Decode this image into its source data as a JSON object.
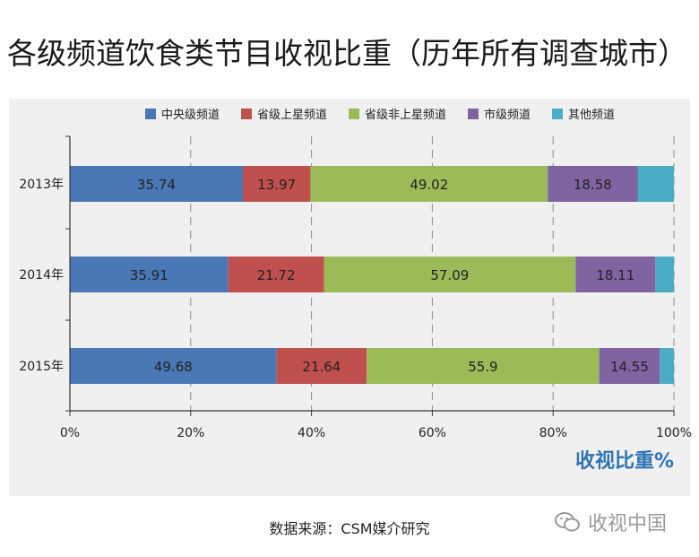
{
  "chart_data": {
    "type": "bar",
    "orientation": "horizontal",
    "stacked": true,
    "normalized": true,
    "title": "各级频道饮食类节目收视比重（历年所有调查城市）",
    "categories": [
      "2013年",
      "2014年",
      "2015年"
    ],
    "series": [
      {
        "name": "中央级频道",
        "color": "#4a78b6",
        "values": [
          35.74,
          35.91,
          49.68
        ]
      },
      {
        "name": "省级上星频道",
        "color": "#c0504d",
        "values": [
          13.97,
          21.72,
          21.64
        ]
      },
      {
        "name": "省级非上星频道",
        "color": "#9bbb59",
        "values": [
          49.02,
          57.09,
          55.9
        ]
      },
      {
        "name": "市级频道",
        "color": "#8064a2",
        "values": [
          18.58,
          18.11,
          14.55
        ]
      },
      {
        "name": "其他频道",
        "color": "#4bacc6",
        "values": [
          7.5,
          4.2,
          3.4
        ]
      }
    ],
    "x_ticks": [
      "0%",
      "20%",
      "40%",
      "60%",
      "80%",
      "100%"
    ],
    "xlim": [
      0,
      100
    ],
    "xlabel": "收视比重%",
    "legend_position": "top",
    "grid": "vertical-dashed"
  },
  "source_text": "数据来源：CSM媒介研究",
  "watermark_text": "收视中国",
  "colors": {
    "axis_label_accent": "#2f74b5",
    "panel_bg": "#f0f0f0"
  }
}
